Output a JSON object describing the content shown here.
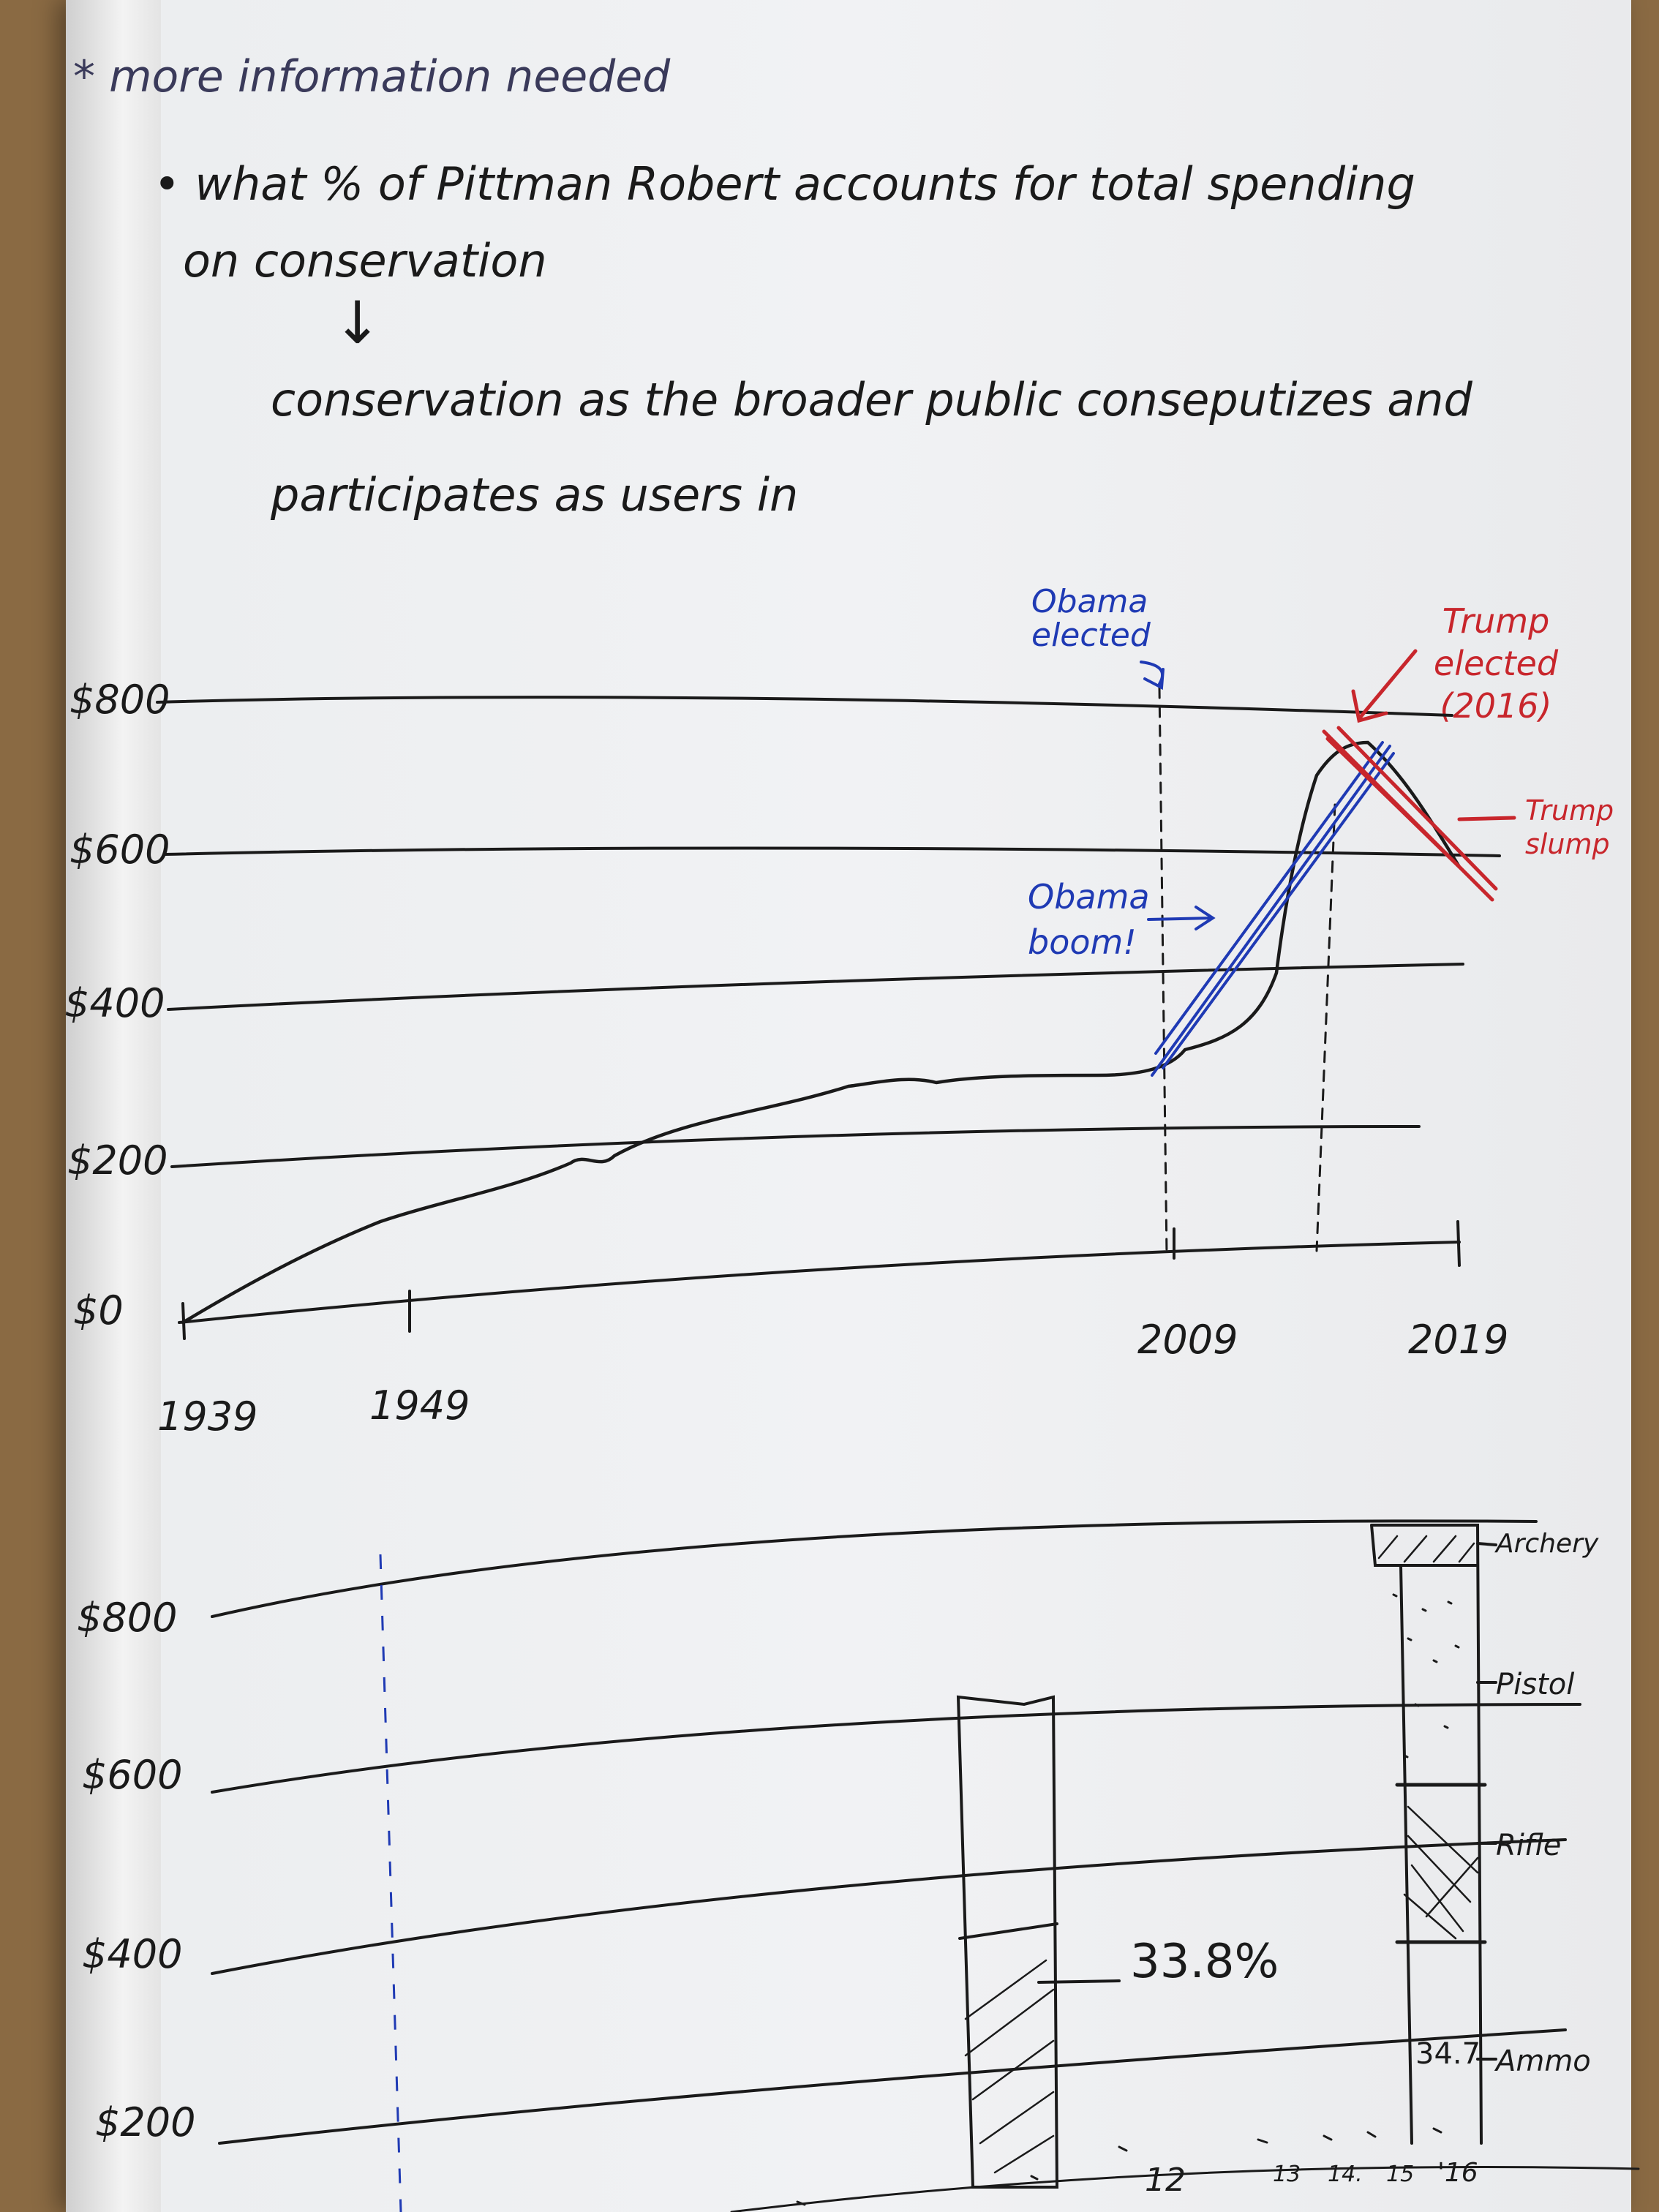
{
  "notes": {
    "heading": "* more information needed",
    "bullet_line1": "• what % of Pittman Robert accounts for total spending",
    "bullet_line2": "on conservation",
    "arrow": "↓",
    "line3": "conservation as the broader public conseputizes and",
    "line4": "participates as users in"
  },
  "top_chart": {
    "y_ticks": [
      "$800",
      "$600",
      "$400",
      "$200",
      "$0"
    ],
    "x_ticks": [
      "1939",
      "1949",
      "2009",
      "2019"
    ],
    "annotations": {
      "obama_elected": "Obama elected",
      "obama_boom": "Obama boom!",
      "trump_elected": "Trump elected (2016)",
      "trump_slump": "Trump slump"
    },
    "colors": {
      "ink": "#1a1a1a",
      "blue": "#1f3ab4",
      "red": "#c8262c"
    }
  },
  "bottom_chart": {
    "y_ticks": [
      "$800",
      "$600",
      "$400",
      "$200"
    ],
    "x_ticks": [
      "12",
      "13",
      "14.",
      "15",
      "'16"
    ],
    "percent_label": "33.8%",
    "ammo_value": "34.7",
    "stack_labels": [
      "Archery",
      "Pistol",
      "Rifle",
      "Ammo"
    ]
  }
}
